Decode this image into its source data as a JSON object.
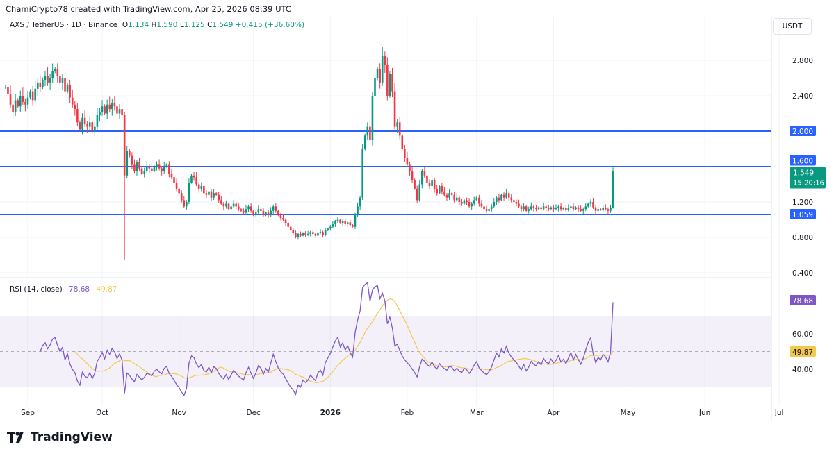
{
  "credit": "ChamiCrypto78 created with TradingView.com, Apr 25, 2026 08:39 UTC",
  "legend": {
    "symbol": "AXS / TetherUS · 1D · Binance",
    "o_label": "O",
    "o": "1.134",
    "h_label": "H",
    "h": "1.590",
    "l_label": "L",
    "l": "1.125",
    "c_label": "C",
    "c": "1.549",
    "change": "+0.415 (+36.60%)"
  },
  "currency_unit": "USDT",
  "brand": "TradingView",
  "colors": {
    "up": "#089981",
    "down": "#f23645",
    "level": "#2962ff",
    "rsi": "#7e57c2",
    "rsi_ma": "#f2c94c",
    "rsi_band": "#7e57c2"
  },
  "chart_data": [
    {
      "type": "candlestick",
      "title": "AXS / TetherUS · 1D · Binance",
      "start_date": "2025-08-23",
      "closes": [
        2.5,
        2.42,
        2.3,
        2.22,
        2.35,
        2.28,
        2.4,
        2.33,
        2.3,
        2.38,
        2.45,
        2.35,
        2.48,
        2.55,
        2.5,
        2.58,
        2.62,
        2.55,
        2.6,
        2.68,
        2.7,
        2.62,
        2.55,
        2.6,
        2.45,
        2.52,
        2.38,
        2.3,
        2.25,
        2.1,
        2.02,
        2.15,
        2.08,
        2.05,
        2.1,
        2.0,
        2.05,
        2.18,
        2.22,
        2.28,
        2.2,
        2.3,
        2.25,
        2.32,
        2.28,
        2.2,
        2.25,
        2.18,
        1.5,
        1.78,
        1.72,
        1.62,
        1.55,
        1.65,
        1.58,
        1.52,
        1.55,
        1.6,
        1.58,
        1.55,
        1.6,
        1.62,
        1.58,
        1.55,
        1.6,
        1.62,
        1.52,
        1.48,
        1.42,
        1.35,
        1.3,
        1.22,
        1.15,
        1.2,
        1.42,
        1.5,
        1.48,
        1.4,
        1.35,
        1.38,
        1.3,
        1.28,
        1.32,
        1.25,
        1.3,
        1.28,
        1.22,
        1.18,
        1.15,
        1.18,
        1.12,
        1.15,
        1.18,
        1.15,
        1.12,
        1.1,
        1.08,
        1.12,
        1.15,
        1.1,
        1.05,
        1.08,
        1.12,
        1.1,
        1.05,
        1.08,
        1.05,
        1.1,
        1.15,
        1.1,
        1.05,
        1.02,
        1.0,
        0.96,
        0.92,
        0.88,
        0.85,
        0.8,
        0.84,
        0.82,
        0.85,
        0.83,
        0.84,
        0.86,
        0.84,
        0.82,
        0.85,
        0.86,
        0.83,
        0.88,
        0.9,
        0.92,
        0.95,
        0.98,
        1.0,
        0.96,
        0.98,
        0.95,
        0.97,
        0.94,
        0.92,
        1.05,
        1.15,
        1.25,
        1.8,
        1.95,
        2.05,
        1.9,
        2.4,
        2.6,
        2.7,
        2.55,
        2.85,
        2.75,
        2.4,
        2.65,
        2.45,
        2.05,
        2.1,
        1.95,
        1.8,
        1.7,
        1.62,
        1.55,
        1.45,
        1.35,
        1.22,
        1.4,
        1.55,
        1.5,
        1.42,
        1.38,
        1.45,
        1.35,
        1.3,
        1.38,
        1.32,
        1.28,
        1.25,
        1.3,
        1.28,
        1.22,
        1.25,
        1.2,
        1.18,
        1.22,
        1.2,
        1.15,
        1.18,
        1.22,
        1.25,
        1.18,
        1.15,
        1.12,
        1.1,
        1.12,
        1.15,
        1.2,
        1.25,
        1.22,
        1.28,
        1.25,
        1.3,
        1.25,
        1.22,
        1.2,
        1.18,
        1.15,
        1.12,
        1.15,
        1.1,
        1.12,
        1.15,
        1.13,
        1.12,
        1.14,
        1.12,
        1.15,
        1.13,
        1.12,
        1.14,
        1.12,
        1.13,
        1.15,
        1.12,
        1.13,
        1.11,
        1.13,
        1.15,
        1.12,
        1.14,
        1.12,
        1.1,
        1.12,
        1.15,
        1.18,
        1.2,
        1.14,
        1.1,
        1.12,
        1.11,
        1.13,
        1.12,
        1.1,
        1.134,
        1.549
      ],
      "wick_extremes": [
        {
          "date": "2025-10-10",
          "low": 0.55
        },
        {
          "date": "2026-01-22",
          "high": 2.95
        },
        {
          "date": "2026-04-25",
          "high": 1.59,
          "low": 1.125
        }
      ],
      "y_ticks": [
        "2.800",
        "2.400",
        "1.200",
        "0.800",
        "0.400"
      ],
      "ylim": [
        0.2,
        3.05
      ],
      "levels": [
        {
          "value": 2.0,
          "label": "2.000"
        },
        {
          "value": 1.6,
          "label": "1.600"
        },
        {
          "value": 1.059,
          "label": "1.059"
        }
      ],
      "last_price": {
        "value": 1.549,
        "label": "1.549",
        "countdown": "15:20:16"
      },
      "x_ticks": [
        {
          "label": "Sep",
          "date": "2025-09-01"
        },
        {
          "label": "Oct",
          "date": "2025-10-01"
        },
        {
          "label": "Nov",
          "date": "2025-11-01"
        },
        {
          "label": "Dec",
          "date": "2025-12-01"
        },
        {
          "label": "2026",
          "date": "2026-01-01"
        },
        {
          "label": "Feb",
          "date": "2026-02-01"
        },
        {
          "label": "Mar",
          "date": "2026-03-01"
        },
        {
          "label": "Apr",
          "date": "2026-04-01"
        },
        {
          "label": "May",
          "date": "2026-05-01"
        },
        {
          "label": "Jun",
          "date": "2026-06-01"
        },
        {
          "label": "Jul",
          "date": "2026-07-01"
        }
      ],
      "grid": true
    },
    {
      "type": "line",
      "title": "RSI (14, close)",
      "series": [
        {
          "name": "RSI",
          "last": "78.68"
        },
        {
          "name": "RSI-based MA",
          "last": "49.87"
        }
      ],
      "y_ticks": [
        "60.00",
        "40.00"
      ],
      "bands": [
        70,
        50,
        30
      ],
      "ylim": [
        18,
        90
      ]
    }
  ]
}
